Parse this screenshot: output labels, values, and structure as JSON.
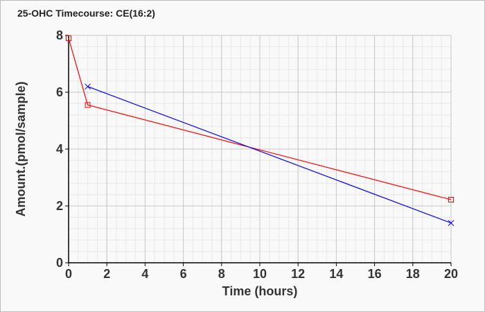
{
  "chart_data": {
    "type": "line",
    "title": "25-OHC Timecourse: CE(16:2)",
    "xlabel": "Time (hours)",
    "ylabel": "Amount.(pmol/sample)",
    "xlim": [
      0,
      20
    ],
    "ylim": [
      0,
      8
    ],
    "xticks": [
      "0",
      "2",
      "4",
      "6",
      "8",
      "10",
      "12",
      "14",
      "16",
      "18",
      "20"
    ],
    "yticks": [
      "0",
      "2",
      "4",
      "6",
      "8"
    ],
    "grid": true,
    "series": [
      {
        "name": "series-red",
        "color": "#ff0000",
        "marker": "square",
        "x": [
          0,
          1,
          20
        ],
        "y": [
          7.9,
          5.55,
          2.22
        ]
      },
      {
        "name": "series-blue",
        "color": "#0000ff",
        "marker": "x",
        "x": [
          1,
          20
        ],
        "y": [
          6.2,
          1.4
        ]
      }
    ]
  }
}
